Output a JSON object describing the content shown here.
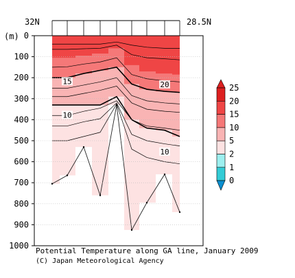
{
  "chart_data": {
    "type": "contour",
    "caption": "Potential Temperature along GA line, January 2009",
    "credit": "(C) Japan Meteorological Agency",
    "y_unit": "(m)",
    "x_labels": {
      "left": "32N",
      "right": "28.5N"
    },
    "y_ticks": [
      0,
      100,
      200,
      300,
      400,
      500,
      600,
      700,
      800,
      900,
      1000
    ],
    "ylim": [
      0,
      1000
    ],
    "y_inverted": true,
    "colorbar": {
      "levels": [
        "25",
        "20",
        "15",
        "10",
        "5",
        "2",
        "1",
        "0"
      ],
      "colors": [
        "#dd2020",
        "#ef4545",
        "#f57878",
        "#f9b4b4",
        "#fde2e2",
        "#9defef",
        "#33ccd6",
        "#0b8fd0"
      ],
      "extend": "both"
    },
    "contour_labels": [
      {
        "text": "15",
        "depth": 220
      },
      {
        "text": "20",
        "depth": 235
      },
      {
        "text": "10",
        "depth": 380
      },
      {
        "text": "10",
        "depth": 555
      }
    ],
    "station_bottom_depths": [
      705,
      665,
      530,
      760,
      330,
      925,
      795,
      660,
      840
    ],
    "contour_depths_ref": [
      [
        40,
        40,
        40,
        40,
        40,
        40,
        40,
        40,
        40
      ],
      [
        65,
        65,
        62,
        60,
        58,
        68,
        70,
        72,
        75
      ],
      [
        120,
        118,
        110,
        100,
        80,
        150,
        165,
        172,
        180
      ]
    ]
  }
}
